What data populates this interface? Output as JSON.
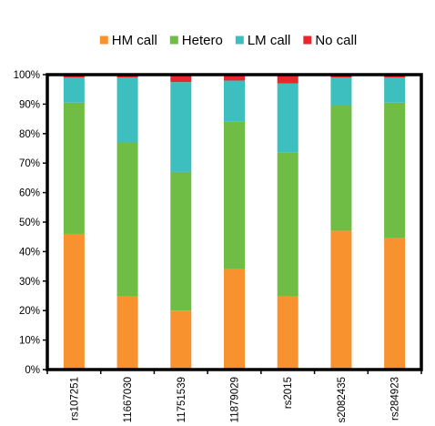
{
  "chart_data": {
    "type": "bar",
    "stacked": true,
    "categories": [
      "rs107251",
      "11667030",
      "11751539",
      "11879029",
      "rs2015",
      "s2082435",
      "rs284923"
    ],
    "series": [
      {
        "name": "HM call",
        "color": "#f7922f",
        "values": [
          46,
          25,
          20,
          34,
          25,
          47,
          44.5
        ]
      },
      {
        "name": "Hetero",
        "color": "#6fbd45",
        "values": [
          44.5,
          52,
          47,
          50,
          48.5,
          42.5,
          46
        ]
      },
      {
        "name": "LM call",
        "color": "#3dbfbf",
        "values": [
          8.5,
          22,
          30.5,
          14,
          23.5,
          9.5,
          8.5
        ]
      },
      {
        "name": "No call",
        "color": "#e8262b",
        "values": [
          1,
          1,
          2.5,
          2,
          3,
          1,
          1
        ]
      }
    ],
    "y_ticks": [
      "0%",
      "10%",
      "20%",
      "30%",
      "40%",
      "50%",
      "60%",
      "70%",
      "80%",
      "90%",
      "100%"
    ],
    "ylim": [
      0,
      100
    ],
    "title": "",
    "xlabel": "",
    "ylabel": "",
    "legend_position": "top",
    "grid": false
  }
}
